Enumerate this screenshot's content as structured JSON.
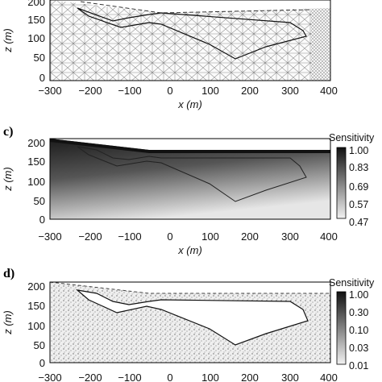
{
  "panels": [
    {
      "label": "",
      "x_ticks": [
        "−300",
        "−200",
        "−100",
        "0",
        "100",
        "200",
        "300",
        "400"
      ],
      "y_ticks": [
        "200",
        "150",
        "100",
        "50",
        "0"
      ],
      "xlabel": "x (m)",
      "ylabel": "z (m)",
      "colorbar": null
    },
    {
      "label": "c)",
      "x_ticks": [
        "−300",
        "−200",
        "−100",
        "0",
        "100",
        "200",
        "300",
        "400"
      ],
      "y_ticks": [
        "200",
        "150",
        "100",
        "50",
        "0"
      ],
      "xlabel": "x (m)",
      "ylabel": "z (m)",
      "colorbar": {
        "title": "Sensitivity",
        "ticks": [
          "1.00",
          "0.83",
          "0.69",
          "0.57",
          "0.47"
        ]
      }
    },
    {
      "label": "d)",
      "x_ticks": [
        "−300",
        "−200",
        "−100",
        "0",
        "100",
        "200",
        "300",
        "400"
      ],
      "y_ticks": [
        "200",
        "150",
        "100",
        "50",
        "0"
      ],
      "xlabel": "",
      "ylabel": "z (m)",
      "colorbar": {
        "title": "Sensitivity",
        "ticks": [
          "1.00",
          "0.30",
          "0.10",
          "0.03",
          "0.01"
        ]
      }
    }
  ],
  "colors": {
    "ink": "#111111",
    "mesh": "#9a9a9a",
    "dark": "#151515"
  }
}
